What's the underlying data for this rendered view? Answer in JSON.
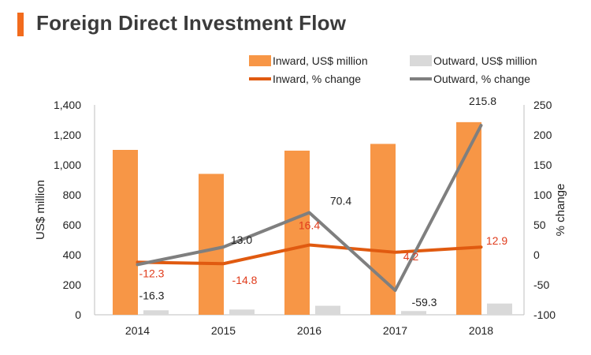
{
  "title": "Foreign Direct Investment Flow",
  "colors": {
    "accent": "#f26b1d",
    "title_text": "#3b3b3b",
    "inward_bar": "#f79646",
    "outward_bar": "#d9d9d9",
    "inward_line": "#e05a10",
    "outward_line": "#7f7f7f",
    "inward_label": "#e03c1c",
    "outward_label": "#222222"
  },
  "chart_data": {
    "type": "bar",
    "categories": [
      "2014",
      "2015",
      "2016",
      "2017",
      "2018"
    ],
    "series": [
      {
        "name": "Inward, US$ million",
        "kind": "bar",
        "axis": "left",
        "values": [
          1100,
          940,
          1095,
          1140,
          1285
        ]
      },
      {
        "name": "Outward, US$ million",
        "kind": "bar",
        "axis": "left",
        "values": [
          30,
          35,
          60,
          25,
          75
        ]
      },
      {
        "name": "Inward, % change",
        "kind": "line",
        "axis": "right",
        "values": [
          -12.3,
          -14.8,
          16.4,
          4.2,
          12.9
        ],
        "labels": [
          "-12.3",
          "-14.8",
          "16.4",
          "4.2",
          "12.9"
        ]
      },
      {
        "name": "Outward, % change",
        "kind": "line",
        "axis": "right",
        "values": [
          -16.3,
          13.0,
          70.4,
          -59.3,
          215.8
        ],
        "labels": [
          "-16.3",
          "13.0",
          "70.4",
          "-59.3",
          "215.8"
        ]
      }
    ],
    "ylabel": "US$ million",
    "ylabel_right": "% change",
    "ylim": [
      0,
      1400
    ],
    "ylim_right": [
      -100,
      250
    ],
    "yticks": [
      "0",
      "200",
      "400",
      "600",
      "800",
      "1,000",
      "1,200",
      "1,400"
    ],
    "yticks_right": [
      "-100",
      "-50",
      "0",
      "50",
      "100",
      "150",
      "200",
      "250"
    ],
    "legend_position": "top-right",
    "grid": false
  }
}
